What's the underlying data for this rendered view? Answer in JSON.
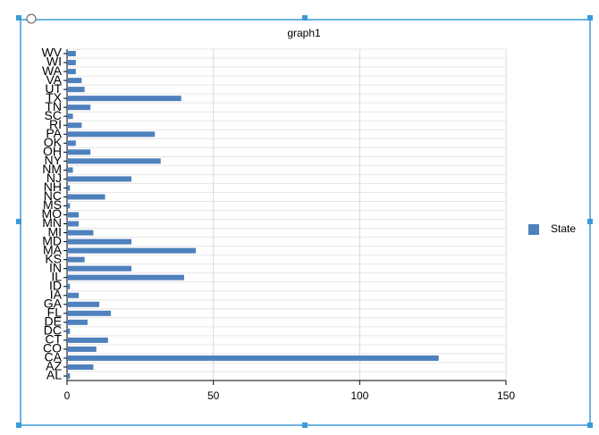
{
  "chart_data": {
    "type": "bar",
    "orientation": "horizontal",
    "title": "graph1",
    "categories": [
      "AL",
      "AZ",
      "CA",
      "CO",
      "CT",
      "DC",
      "DE",
      "FL",
      "GA",
      "IA",
      "ID",
      "IL",
      "IN",
      "KS",
      "MA",
      "MD",
      "MI",
      "MN",
      "MO",
      "MS",
      "NC",
      "NH",
      "NJ",
      "NM",
      "NY",
      "OH",
      "OK",
      "PA",
      "RI",
      "SC",
      "TN",
      "TX",
      "UT",
      "VA",
      "WA",
      "WI",
      "WV"
    ],
    "series": [
      {
        "name": "State",
        "color": "#4f81bd",
        "values": [
          1,
          9,
          127,
          10,
          14,
          1,
          7,
          15,
          11,
          4,
          1,
          40,
          22,
          6,
          44,
          22,
          9,
          4,
          4,
          1,
          13,
          1,
          22,
          2,
          32,
          8,
          3,
          30,
          5,
          2,
          8,
          39,
          6,
          5,
          3,
          3,
          3
        ]
      }
    ],
    "xlim": [
      0,
      150
    ],
    "xticks": [
      0,
      50,
      100,
      150
    ],
    "grid": true,
    "legend": "right"
  }
}
